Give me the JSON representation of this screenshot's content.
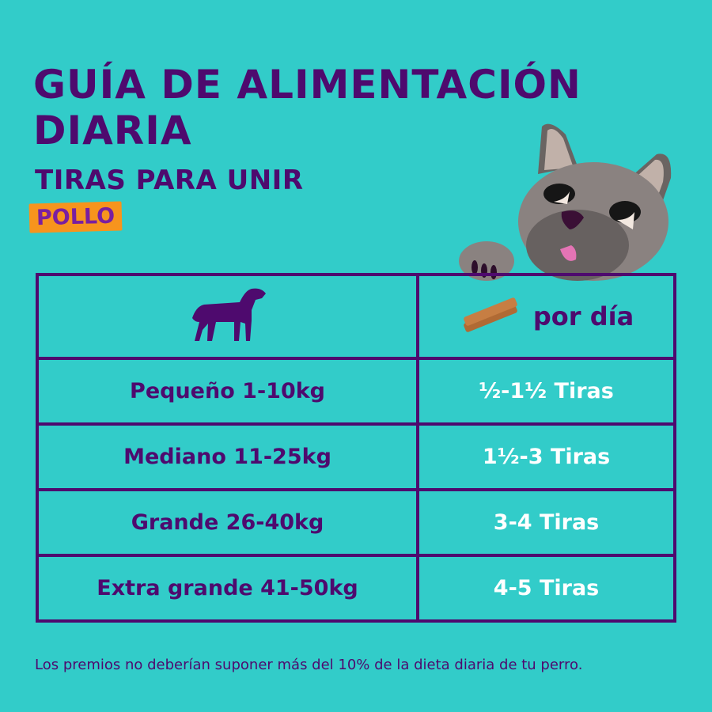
{
  "title": "GUÍA DE ALIMENTACIÓN DIARIA",
  "subtitle": "TIRAS PARA UNIR",
  "flavor_badge": "POLLO",
  "colors": {
    "background": "#32ccc9",
    "text": "#4e0a6e",
    "badge": "#f7941d",
    "value_text": "#ffffff"
  },
  "table": {
    "header": {
      "weight_icon": "dog-silhouette-icon",
      "dose_icon": "treat-strips-icon",
      "dose_label": "por día"
    },
    "rows": [
      {
        "size": "Pequeño 1-10kg",
        "amount": "½-1½ Tiras"
      },
      {
        "size": "Mediano 11-25kg",
        "amount": "1½-3 Tiras"
      },
      {
        "size": "Grande 26-40kg",
        "amount": "3-4 Tiras"
      },
      {
        "size": "Extra grande 41-50kg",
        "amount": "4-5 Tiras"
      }
    ]
  },
  "footer": "Los premios no deberían suponer más del 10% de la dieta diaria de tu perro."
}
